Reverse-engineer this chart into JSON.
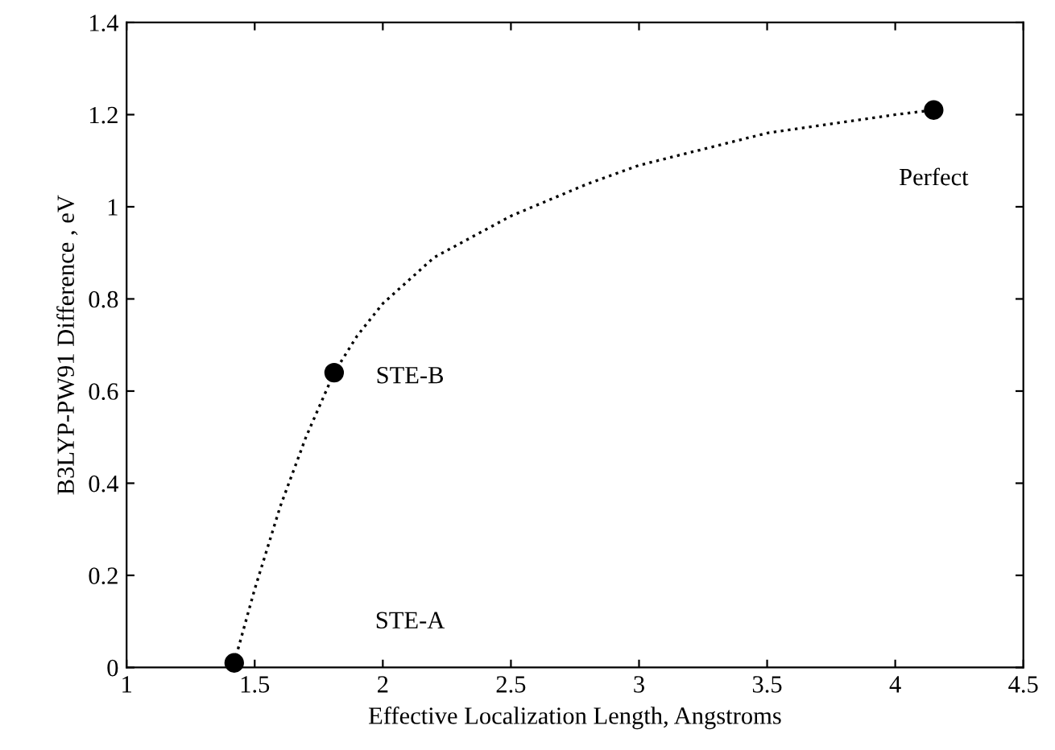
{
  "chart_data": {
    "type": "scatter",
    "xlabel": "Effective Localization Length, Angstroms",
    "ylabel": "B3LYP-PW91 Difference , eV",
    "xlim": [
      1,
      4.5
    ],
    "xticks": [
      1,
      1.5,
      2,
      2.5,
      3,
      3.5,
      4,
      4.5
    ],
    "ylim": [
      0,
      1.4
    ],
    "yticks": [
      0,
      0.2,
      0.4,
      0.6,
      0.8,
      1,
      1.2,
      1.4
    ],
    "series": [
      {
        "color": "#000000",
        "marker": "circle",
        "x": [
          1.42,
          1.81,
          4.15
        ],
        "values": [
          0.01,
          0.64,
          1.21
        ]
      },
      {
        "type": "line",
        "color": "#000000",
        "line_style": "dotted",
        "marker": "none",
        "x": [
          1.42,
          1.5,
          1.6,
          1.7,
          1.81,
          1.9,
          2.0,
          2.2,
          2.5,
          2.8,
          3.0,
          3.5,
          4.0,
          4.15
        ],
        "values": [
          0.01,
          0.17,
          0.35,
          0.5,
          0.64,
          0.72,
          0.79,
          0.89,
          0.98,
          1.05,
          1.09,
          1.16,
          1.2,
          1.21
        ]
      }
    ],
    "annotations": [
      "STE-A",
      "STE-B",
      "Perfect"
    ],
    "grid": false,
    "legend": false
  }
}
